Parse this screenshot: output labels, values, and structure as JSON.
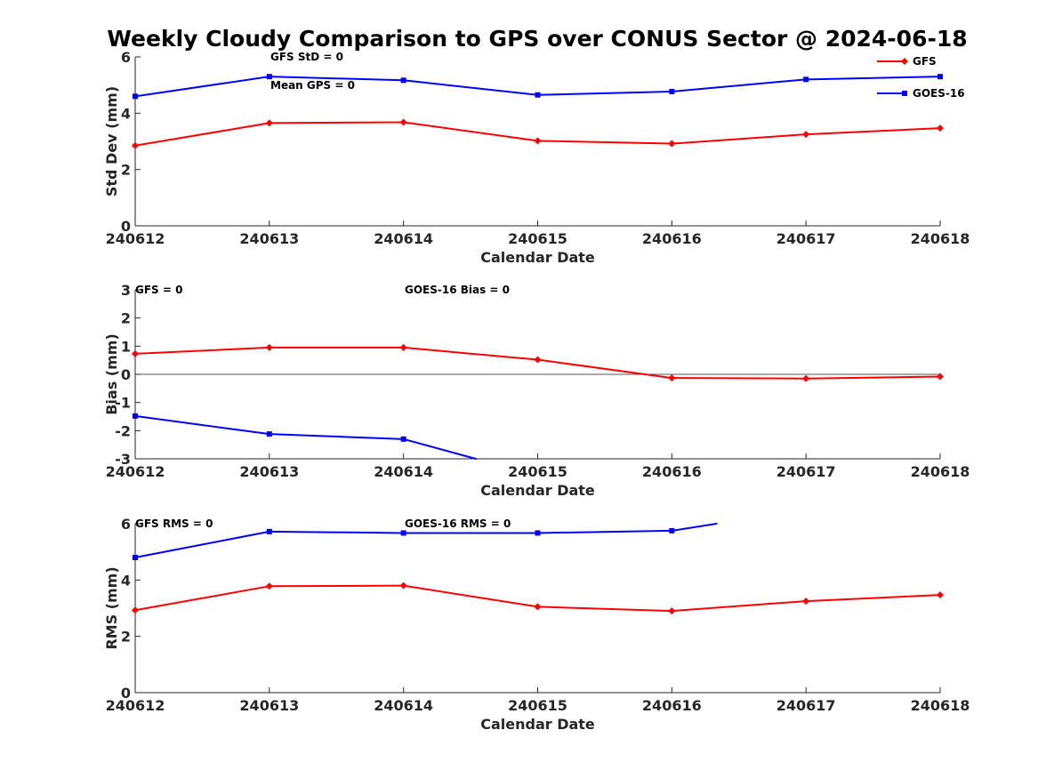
{
  "title": "Weekly Cloudy Comparison to GPS over CONUS Sector @ 2024-06-18",
  "legend": {
    "placement": "top-right (first panel)",
    "entries": [
      {
        "name": "GFS",
        "color": "#ff0000",
        "marker": "diamond"
      },
      {
        "name": "GOES-16",
        "color": "#0000ff",
        "marker": "square"
      }
    ]
  },
  "chart_data": [
    {
      "type": "line",
      "xlabel": "Calendar Date",
      "ylabel": "Std Dev (mm)",
      "categories": [
        "240612",
        "240613",
        "240614",
        "240615",
        "240616",
        "240617",
        "240618"
      ],
      "ylim": [
        0,
        6
      ],
      "yticks": [
        "0",
        "2",
        "4",
        "6"
      ],
      "annotations": [
        "GFS StD = 0",
        "Mean GPS = 0"
      ],
      "zero_line": false,
      "series": [
        {
          "name": "GFS",
          "color": "#ff0000",
          "marker": "diamond",
          "values": [
            2.85,
            3.65,
            3.68,
            3.02,
            2.92,
            3.25,
            3.47
          ]
        },
        {
          "name": "GOES-16",
          "color": "#0000ff",
          "marker": "square",
          "values": [
            4.6,
            5.3,
            5.17,
            4.65,
            4.77,
            5.2,
            5.3
          ]
        }
      ]
    },
    {
      "type": "line",
      "xlabel": "Calendar Date",
      "ylabel": "Bias (mm)",
      "categories": [
        "240612",
        "240613",
        "240614",
        "240615",
        "240616",
        "240617",
        "240618"
      ],
      "ylim": [
        -3,
        3
      ],
      "yticks": [
        "-3",
        "-2",
        "-1",
        "0",
        "1",
        "2",
        "3"
      ],
      "annotations": [
        "GFS = 0",
        "GOES-16 Bias  = 0"
      ],
      "zero_line": true,
      "series": [
        {
          "name": "GFS",
          "color": "#ff0000",
          "marker": "diamond",
          "values": [
            0.73,
            0.95,
            0.95,
            0.52,
            -0.13,
            -0.15,
            -0.08
          ]
        },
        {
          "name": "GOES-16",
          "color": "#0000ff",
          "marker": "square",
          "values": [
            -1.48,
            -2.12,
            -2.3,
            -3.6,
            null,
            null,
            null
          ]
        }
      ]
    },
    {
      "type": "line",
      "xlabel": "Calendar Date",
      "ylabel": "RMS (mm)",
      "categories": [
        "240612",
        "240613",
        "240614",
        "240615",
        "240616",
        "240617",
        "240618"
      ],
      "ylim": [
        0,
        6
      ],
      "yticks": [
        "0",
        "2",
        "4",
        "6"
      ],
      "annotations": [
        "GFS RMS = 0",
        "GOES-16 RMS = 0"
      ],
      "zero_line": false,
      "series": [
        {
          "name": "GFS",
          "color": "#ff0000",
          "marker": "diamond",
          "values": [
            2.93,
            3.78,
            3.8,
            3.05,
            2.9,
            3.25,
            3.47
          ]
        },
        {
          "name": "GOES-16",
          "color": "#0000ff",
          "marker": "square",
          "values": [
            4.8,
            5.72,
            5.67,
            5.67,
            5.75,
            6.5,
            null
          ]
        }
      ]
    }
  ]
}
